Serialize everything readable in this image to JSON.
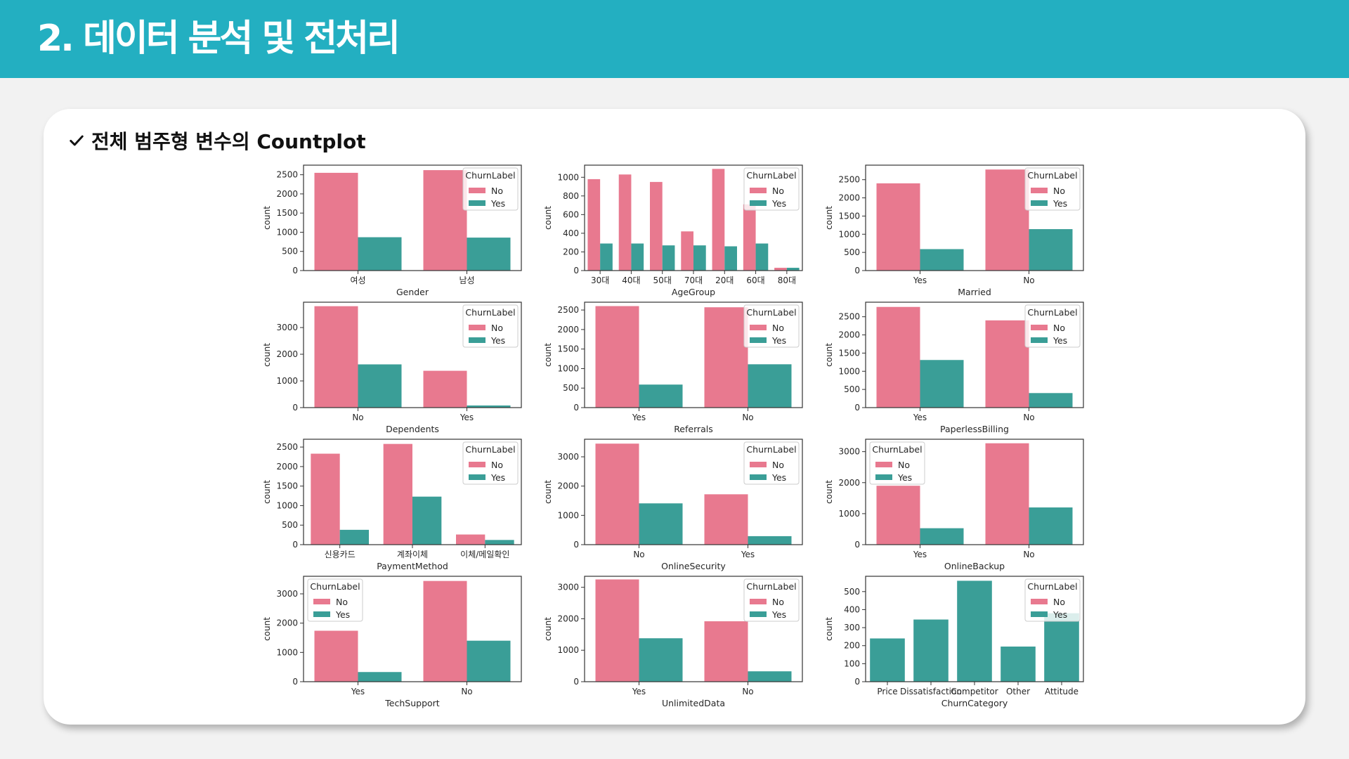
{
  "header": {
    "title": "2. 데이터 분석 및 전처리",
    "bg_color": "#23afc1"
  },
  "section": {
    "icon": "checkmark-icon",
    "heading": "전체 범주형 변수의 Countplot"
  },
  "colors": {
    "No": "#e8798f",
    "Yes": "#3a9e97",
    "single": "#3a9e97"
  },
  "chart_data": [
    {
      "type": "bar",
      "xlabel": "Gender",
      "ylabel": "count",
      "legend_title": "ChurnLabel",
      "legend_placement": "top-right",
      "categories": [
        "여성",
        "남성"
      ],
      "yticks": [
        0,
        500,
        1000,
        1500,
        2000,
        2500
      ],
      "ylim": [
        0,
        2750
      ],
      "series": [
        {
          "name": "No",
          "values": [
            2550,
            2620
          ]
        },
        {
          "name": "Yes",
          "values": [
            870,
            860
          ]
        }
      ]
    },
    {
      "type": "bar",
      "xlabel": "AgeGroup",
      "ylabel": "count",
      "legend_title": "ChurnLabel",
      "legend_placement": "top-right",
      "categories": [
        "30대",
        "40대",
        "50대",
        "70대",
        "20대",
        "60대",
        "80대"
      ],
      "yticks": [
        0,
        200,
        400,
        600,
        800,
        1000
      ],
      "ylim": [
        0,
        1130
      ],
      "series": [
        {
          "name": "No",
          "values": [
            980,
            1030,
            950,
            420,
            1090,
            710,
            30
          ]
        },
        {
          "name": "Yes",
          "values": [
            290,
            290,
            270,
            270,
            260,
            290,
            30
          ]
        }
      ]
    },
    {
      "type": "bar",
      "xlabel": "Married",
      "ylabel": "count",
      "legend_title": "ChurnLabel",
      "legend_placement": "top-right",
      "categories": [
        "Yes",
        "No"
      ],
      "yticks": [
        0,
        500,
        1000,
        1500,
        2000,
        2500
      ],
      "ylim": [
        0,
        2900
      ],
      "series": [
        {
          "name": "No",
          "values": [
            2400,
            2780
          ]
        },
        {
          "name": "Yes",
          "values": [
            590,
            1140
          ]
        }
      ]
    },
    {
      "type": "bar",
      "xlabel": "Dependents",
      "ylabel": "count",
      "legend_title": "ChurnLabel",
      "legend_placement": "top-right",
      "categories": [
        "No",
        "Yes"
      ],
      "yticks": [
        0,
        1000,
        2000,
        3000
      ],
      "ylim": [
        0,
        3950
      ],
      "series": [
        {
          "name": "No",
          "values": [
            3800,
            1380
          ]
        },
        {
          "name": "Yes",
          "values": [
            1620,
            80
          ]
        }
      ]
    },
    {
      "type": "bar",
      "xlabel": "Referrals",
      "ylabel": "count",
      "legend_title": "ChurnLabel",
      "legend_placement": "top-right",
      "categories": [
        "Yes",
        "No"
      ],
      "yticks": [
        0,
        500,
        1000,
        1500,
        2000,
        2500
      ],
      "ylim": [
        0,
        2700
      ],
      "series": [
        {
          "name": "No",
          "values": [
            2600,
            2570
          ]
        },
        {
          "name": "Yes",
          "values": [
            590,
            1110
          ]
        }
      ]
    },
    {
      "type": "bar",
      "xlabel": "PaperlessBilling",
      "ylabel": "count",
      "legend_title": "ChurnLabel",
      "legend_placement": "top-right",
      "categories": [
        "Yes",
        "No"
      ],
      "yticks": [
        0,
        500,
        1000,
        1500,
        2000,
        2500
      ],
      "ylim": [
        0,
        2900
      ],
      "series": [
        {
          "name": "No",
          "values": [
            2770,
            2400
          ]
        },
        {
          "name": "Yes",
          "values": [
            1310,
            400
          ]
        }
      ]
    },
    {
      "type": "bar",
      "xlabel": "PaymentMethod",
      "ylabel": "count",
      "legend_title": "ChurnLabel",
      "legend_placement": "top-right",
      "categories": [
        "신용카드",
        "계좌이체",
        "이체/메일확인"
      ],
      "yticks": [
        0,
        500,
        1000,
        1500,
        2000,
        2500
      ],
      "ylim": [
        0,
        2700
      ],
      "series": [
        {
          "name": "No",
          "values": [
            2330,
            2580,
            260
          ]
        },
        {
          "name": "Yes",
          "values": [
            380,
            1230,
            120
          ]
        }
      ]
    },
    {
      "type": "bar",
      "xlabel": "OnlineSecurity",
      "ylabel": "count",
      "legend_title": "ChurnLabel",
      "legend_placement": "top-right",
      "categories": [
        "No",
        "Yes"
      ],
      "yticks": [
        0,
        1000,
        2000,
        3000
      ],
      "ylim": [
        0,
        3600
      ],
      "series": [
        {
          "name": "No",
          "values": [
            3450,
            1720
          ]
        },
        {
          "name": "Yes",
          "values": [
            1410,
            290
          ]
        }
      ]
    },
    {
      "type": "bar",
      "xlabel": "OnlineBackup",
      "ylabel": "count",
      "legend_title": "ChurnLabel",
      "legend_placement": "top-left",
      "categories": [
        "Yes",
        "No"
      ],
      "yticks": [
        0,
        1000,
        2000,
        3000
      ],
      "ylim": [
        0,
        3400
      ],
      "series": [
        {
          "name": "No",
          "values": [
            1900,
            3270
          ]
        },
        {
          "name": "Yes",
          "values": [
            530,
            1200
          ]
        }
      ]
    },
    {
      "type": "bar",
      "xlabel": "TechSupport",
      "ylabel": "count",
      "legend_title": "ChurnLabel",
      "legend_placement": "top-left",
      "categories": [
        "Yes",
        "No"
      ],
      "yticks": [
        0,
        1000,
        2000,
        3000
      ],
      "ylim": [
        0,
        3600
      ],
      "series": [
        {
          "name": "No",
          "values": [
            1740,
            3440
          ]
        },
        {
          "name": "Yes",
          "values": [
            330,
            1400
          ]
        }
      ]
    },
    {
      "type": "bar",
      "xlabel": "UnlimitedData",
      "ylabel": "count",
      "legend_title": "ChurnLabel",
      "legend_placement": "top-right",
      "categories": [
        "Yes",
        "No"
      ],
      "yticks": [
        0,
        1000,
        2000,
        3000
      ],
      "ylim": [
        0,
        3350
      ],
      "series": [
        {
          "name": "No",
          "values": [
            3250,
            1920
          ]
        },
        {
          "name": "Yes",
          "values": [
            1380,
            330
          ]
        }
      ]
    },
    {
      "type": "bar",
      "xlabel": "ChurnCategory",
      "ylabel": "count",
      "legend_title": "ChurnLabel",
      "legend_placement": "top-right",
      "legend_entries": [
        "No",
        "Yes"
      ],
      "categories": [
        "Price",
        "Dissatisfaction",
        "Competitor",
        "Other",
        "Attitude"
      ],
      "yticks": [
        0,
        100,
        200,
        300,
        400,
        500
      ],
      "ylim": [
        0,
        585
      ],
      "series": [
        {
          "name": "Yes",
          "values": [
            240,
            345,
            560,
            195,
            380
          ]
        }
      ]
    }
  ]
}
